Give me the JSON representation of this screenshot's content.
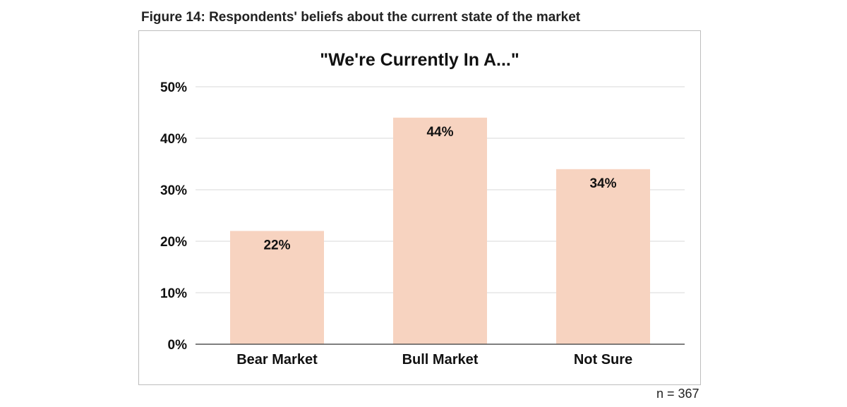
{
  "figure": {
    "caption": "Figure 14: Respondents' beliefs about the current state of the market",
    "sample_note": "n = 367"
  },
  "chart_data": {
    "type": "bar",
    "title": "\"We're Currently In A...\"",
    "xlabel": "",
    "ylabel": "",
    "categories": [
      "Bear Market",
      "Bull Market",
      "Not Sure"
    ],
    "values": [
      22,
      44,
      34
    ],
    "data_labels": [
      "22%",
      "44%",
      "34%"
    ],
    "ylim": [
      0,
      50
    ],
    "yticks": [
      0,
      10,
      20,
      30,
      40,
      50
    ],
    "ytick_labels": [
      "0%",
      "10%",
      "20%",
      "30%",
      "40%",
      "50%"
    ],
    "grid": true,
    "legend": "none",
    "colors": {
      "bar": "#f7d3c0",
      "grid": "#d9d9d9",
      "axis": "#555555",
      "text": "#111111"
    }
  }
}
